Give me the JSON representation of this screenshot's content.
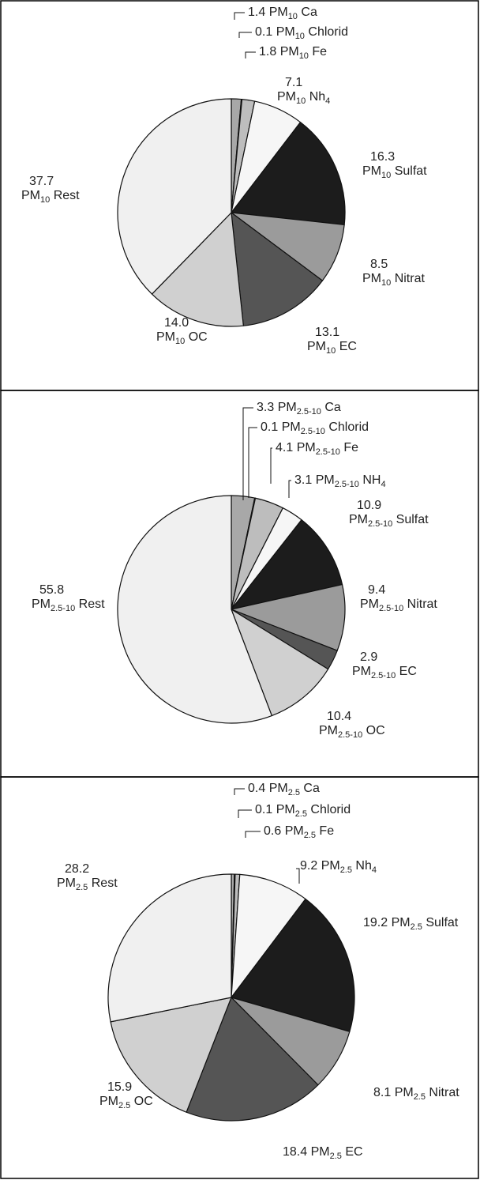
{
  "chart_data": [
    {
      "type": "pie",
      "categories": [
        "Ca",
        "Chlorid",
        "Fe",
        "Nh4",
        "Sulfat",
        "Nitrat",
        "EC",
        "OC",
        "Rest"
      ],
      "values": [
        1.4,
        0.1,
        1.8,
        7.1,
        16.3,
        8.5,
        13.1,
        14.0,
        37.7
      ],
      "value_labels": [
        "1.4",
        "0.1",
        "1.8",
        "7.1",
        "16.3",
        "8.5",
        "13.1",
        "14.0",
        "37.7"
      ],
      "series_labels": [
        {
          "base": "PM",
          "sub": "10",
          "suffix": "Ca"
        },
        {
          "base": "PM",
          "sub": "10",
          "suffix": "Chlorid"
        },
        {
          "base": "PM",
          "sub": "10",
          "suffix": "Fe"
        },
        {
          "base": "PM",
          "sub": "10",
          "suffix": "Nh",
          "suffix_sub": "4"
        },
        {
          "base": "PM",
          "sub": "10",
          "suffix": "Sulfat"
        },
        {
          "base": "PM",
          "sub": "10",
          "suffix": "Nitrat"
        },
        {
          "base": "PM",
          "sub": "10",
          "suffix": "EC"
        },
        {
          "base": "PM",
          "sub": "10",
          "suffix": "OC"
        },
        {
          "base": "PM",
          "sub": "10",
          "suffix": "Rest"
        }
      ],
      "colors": [
        "#a8a8a8",
        "#b4b4b4",
        "#bdbdbd",
        "#f6f6f6",
        "#1c1c1c",
        "#9b9b9b",
        "#555555",
        "#d0d0d0",
        "#f0f0f0"
      ],
      "start_angle_deg": 0,
      "direction": "clockwise"
    },
    {
      "type": "pie",
      "categories": [
        "Ca",
        "Chlorid",
        "Fe",
        "NH4",
        "Sulfat",
        "Nitrat",
        "EC",
        "OC",
        "Rest"
      ],
      "values": [
        3.3,
        0.1,
        4.1,
        3.1,
        10.9,
        9.4,
        2.9,
        10.4,
        55.8
      ],
      "value_labels": [
        "3.3",
        "0.1",
        "4.1",
        "3.1",
        "10.9",
        "9.4",
        "2.9",
        "10.4",
        "55.8"
      ],
      "series_labels": [
        {
          "base": "PM",
          "sub": "2.5-10",
          "suffix": "Ca"
        },
        {
          "base": "PM",
          "sub": "2.5-10",
          "suffix": "Chlorid"
        },
        {
          "base": "PM",
          "sub": "2.5-10",
          "suffix": "Fe"
        },
        {
          "base": "PM",
          "sub": "2.5-10",
          "suffix": "NH",
          "suffix_sub": "4"
        },
        {
          "base": "PM",
          "sub": "2.5-10",
          "suffix": "Sulfat"
        },
        {
          "base": "PM",
          "sub": "2.5-10",
          "suffix": "Nitrat"
        },
        {
          "base": "PM",
          "sub": "2.5-10",
          "suffix": "EC"
        },
        {
          "base": "PM",
          "sub": "2.5-10",
          "suffix": "OC"
        },
        {
          "base": "PM",
          "sub": "2.5-10",
          "suffix": "Rest"
        }
      ],
      "colors": [
        "#a8a8a8",
        "#b4b4b4",
        "#bdbdbd",
        "#f6f6f6",
        "#1c1c1c",
        "#9b9b9b",
        "#555555",
        "#d0d0d0",
        "#f0f0f0"
      ],
      "start_angle_deg": 0,
      "direction": "clockwise"
    },
    {
      "type": "pie",
      "categories": [
        "Ca",
        "Chlorid",
        "Fe",
        "Nh4",
        "Sulfat",
        "Nitrat",
        "EC",
        "OC",
        "Rest"
      ],
      "values": [
        0.4,
        0.1,
        0.6,
        9.2,
        19.2,
        8.1,
        18.4,
        15.9,
        28.2
      ],
      "value_labels": [
        "0.4",
        "0.1",
        "0.6",
        "9.2",
        "19.2",
        "8.1",
        "18.4",
        "15.9",
        "28.2"
      ],
      "series_labels": [
        {
          "base": "PM",
          "sub": "2.5",
          "suffix": "Ca"
        },
        {
          "base": "PM",
          "sub": "2.5",
          "suffix": "Chlorid"
        },
        {
          "base": "PM",
          "sub": "2.5",
          "suffix": "Fe"
        },
        {
          "base": "PM",
          "sub": "2.5",
          "suffix": "Nh",
          "suffix_sub": "4"
        },
        {
          "base": "PM",
          "sub": "2.5",
          "suffix": "Sulfat"
        },
        {
          "base": "PM",
          "sub": "2.5",
          "suffix": "Nitrat"
        },
        {
          "base": "PM",
          "sub": "2.5",
          "suffix": "EC"
        },
        {
          "base": "PM",
          "sub": "2.5",
          "suffix": "OC"
        },
        {
          "base": "PM",
          "sub": "2.5",
          "suffix": "Rest"
        }
      ],
      "colors": [
        "#a8a8a8",
        "#b4b4b4",
        "#bdbdbd",
        "#f6f6f6",
        "#1c1c1c",
        "#9b9b9b",
        "#555555",
        "#d0d0d0",
        "#f0f0f0"
      ],
      "start_angle_deg": 0,
      "direction": "clockwise"
    }
  ]
}
